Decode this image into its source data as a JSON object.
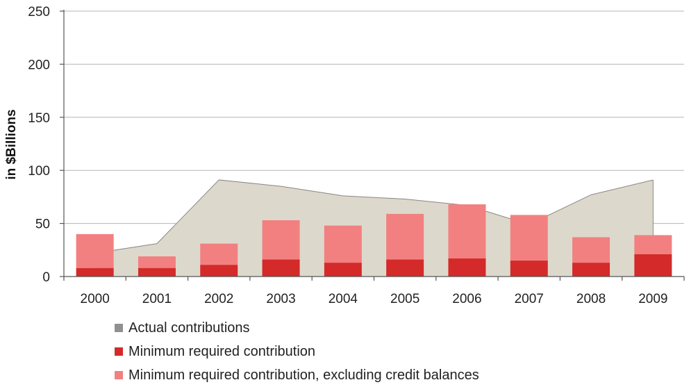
{
  "chart_data": {
    "type": "bar",
    "title": "",
    "xlabel": "",
    "ylabel": "in $Billions",
    "ylim": [
      0,
      250
    ],
    "yticks": [
      "0",
      "50",
      "100",
      "150",
      "200",
      "250"
    ],
    "ytick_values": [
      0,
      50,
      100,
      150,
      200,
      250
    ],
    "grid": "horizontal",
    "legend_position": "bottom-left",
    "categories": [
      "2000",
      "2001",
      "2002",
      "2003",
      "2004",
      "2005",
      "2006",
      "2007",
      "2008",
      "2009"
    ],
    "series": [
      {
        "name": "Actual contributions",
        "kind": "area",
        "color": "#ddd8cc",
        "legend_color": "#909090",
        "values": [
          22,
          31,
          91,
          85,
          76,
          73,
          67,
          49,
          77,
          91
        ]
      },
      {
        "name": "Minimum required contribution",
        "kind": "bar",
        "color": "#d42a2a",
        "values": [
          8,
          8,
          11,
          16,
          13,
          16,
          17,
          15,
          13,
          21
        ]
      },
      {
        "name": "Minimum required contribution, excluding credit balances",
        "kind": "bar-total",
        "color": "#f28080",
        "values": [
          40,
          19,
          31,
          53,
          48,
          59,
          68,
          58,
          37,
          39
        ]
      }
    ]
  }
}
